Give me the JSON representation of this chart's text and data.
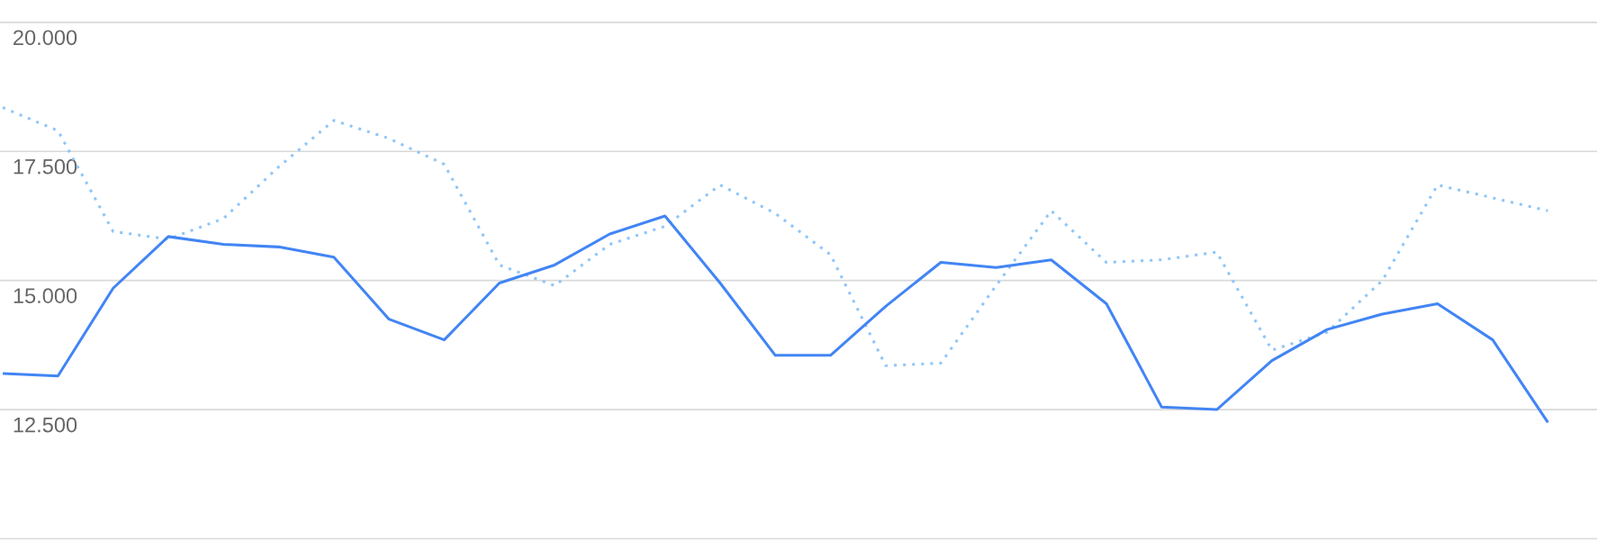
{
  "chart_data": {
    "type": "line",
    "categories": [
      null,
      null,
      null,
      null,
      null,
      null,
      null,
      null,
      null,
      null,
      null,
      null,
      null,
      null,
      null,
      null,
      null,
      null,
      null,
      null,
      null,
      null,
      null,
      null,
      null,
      null,
      null,
      null,
      null
    ],
    "series": [
      {
        "color": "#4285f4",
        "line_style": "solid",
        "values": [
          13200,
          13150,
          14850,
          15850,
          15700,
          15650,
          15450,
          14250,
          13850,
          14950,
          15300,
          15900,
          16250,
          14950,
          13550,
          13550,
          14500,
          15350,
          15250,
          15400,
          14550,
          12550,
          12500,
          13450,
          14050,
          14350,
          14550,
          13850,
          12250
        ]
      },
      {
        "color": "#90c6f7",
        "line_style": "dotted",
        "values": [
          18350,
          17900,
          15950,
          15800,
          16200,
          17200,
          18100,
          17750,
          17250,
          15300,
          14900,
          15700,
          16050,
          16850,
          16300,
          15500,
          13350,
          13400,
          14900,
          16350,
          15350,
          15400,
          15550,
          13650,
          14000,
          15000,
          16850,
          16600,
          16350
        ]
      }
    ],
    "ylim": [
      10000,
      20000
    ],
    "yticks": [
      {
        "value": 10000,
        "label": null
      },
      {
        "value": 12500,
        "label": "12.500"
      },
      {
        "value": 15000,
        "label": "15.000"
      },
      {
        "value": 17500,
        "label": "17.500"
      },
      {
        "value": 20000,
        "label": "20.000"
      }
    ],
    "grid": "y",
    "tick_labels": "y"
  }
}
